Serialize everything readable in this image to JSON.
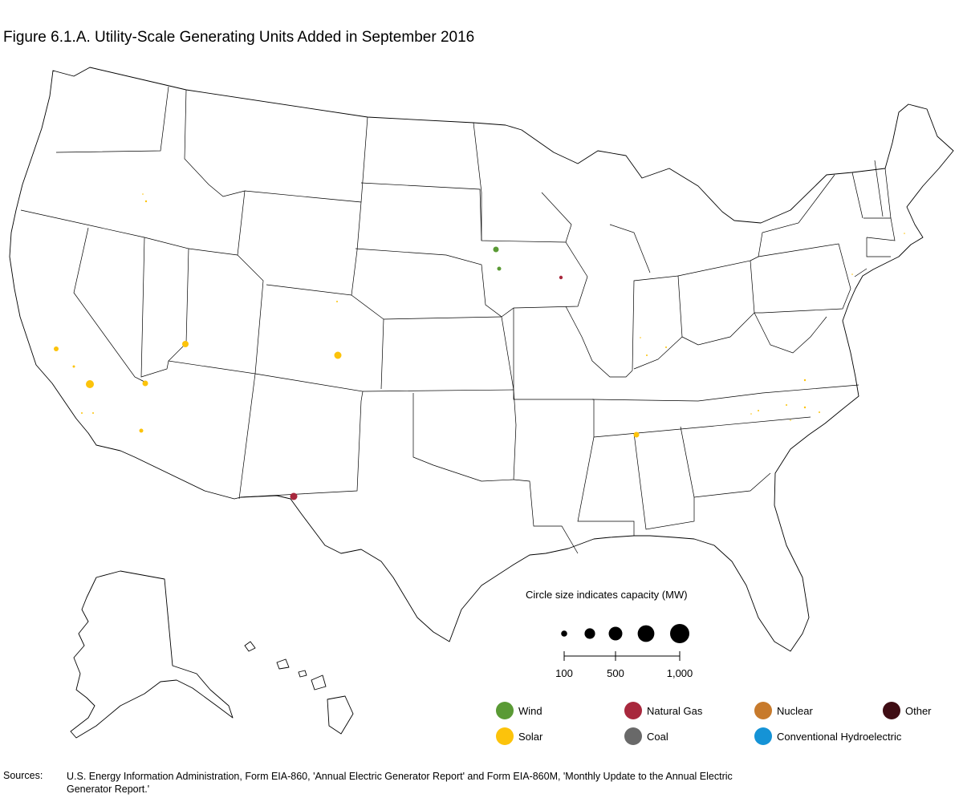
{
  "title": "Figure 6.1.A. Utility-Scale Generating Units Added in September 2016",
  "size_legend": {
    "title": "Circle size indicates capacity (MW)",
    "circles_mw": [
      100,
      300,
      500,
      750,
      1000
    ],
    "tick_labels": [
      {
        "mw": 100,
        "label": "100"
      },
      {
        "mw": 500,
        "label": "500"
      },
      {
        "mw": 1000,
        "label": "1,000"
      }
    ]
  },
  "fuel_legend": [
    {
      "label": "Wind",
      "color": "#5a9a35"
    },
    {
      "label": "Natural Gas",
      "color": "#a8283d"
    },
    {
      "label": "Nuclear",
      "color": "#c77a2c"
    },
    {
      "label": "Other",
      "color": "#3f0d14"
    },
    {
      "label": "Solar",
      "color": "#fcc30b"
    },
    {
      "label": "Coal",
      "color": "#696969"
    },
    {
      "label": "Conventional Hydroelectric",
      "color": "#1593d6"
    }
  ],
  "sources": {
    "label": "Sources:",
    "text": "U.S. Energy Information Administration, Form EIA-860, 'Annual Electric Generator Report' and Form EIA-860M, 'Monthly Update to the Annual Electric Generator Report.'"
  }
}
